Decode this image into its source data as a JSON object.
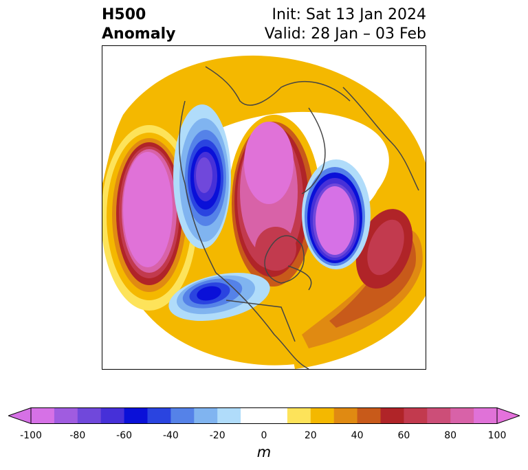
{
  "title": {
    "left_line1": "H500",
    "left_line2": "Anomaly",
    "right_line1": "Init: Sat 13 Jan 2024",
    "right_line2": "Valid: 28 Jan – 03 Feb"
  },
  "colorbar": {
    "units": "m",
    "ticks": [
      "-100",
      "-80",
      "-60",
      "-40",
      "-20",
      "0",
      "20",
      "40",
      "60",
      "80",
      "100"
    ],
    "colors": [
      "#d671e6",
      "#a05ce0",
      "#7048db",
      "#4630d8",
      "#0a10d8",
      "#2a44e0",
      "#5582e8",
      "#80b4f0",
      "#b0dcfa",
      "#ffffff",
      "#ffffff",
      "#fde35a",
      "#f4b800",
      "#e08a12",
      "#c85a1a",
      "#b02428",
      "#c23a4e",
      "#cc4e78",
      "#d862a8",
      "#e072d8"
    ],
    "min_color": "#d671e6",
    "max_color": "#e472dc"
  }
}
